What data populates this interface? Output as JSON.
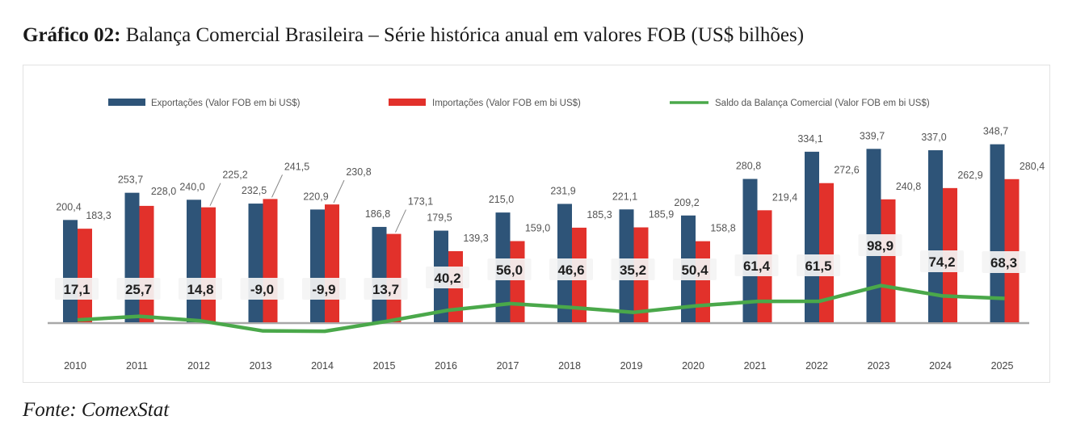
{
  "title": {
    "bold": "Gráfico 02:",
    "text": "Balança Comercial Brasileira – Série histórica anual em valores FOB (US$ bilhões)"
  },
  "source": "Fonte: ComexStat",
  "colors": {
    "exports": "#2e5478",
    "imports": "#e2312b",
    "balance": "#4aa84a"
  },
  "chart_data": {
    "type": "bar",
    "title": "Balança Comercial Brasileira – Série histórica anual em valores FOB (US$ bilhões)",
    "xlabel": "",
    "ylabel": "",
    "legend_position": "top",
    "grid": false,
    "ylim": [
      -15,
      360
    ],
    "categories": [
      "2010",
      "2011",
      "2012",
      "2013",
      "2014",
      "2015",
      "2016",
      "2017",
      "2018",
      "2019",
      "2020",
      "2021",
      "2022",
      "2023",
      "2024",
      "2025"
    ],
    "series": [
      {
        "name": "Exportações (Valor FOB em bi US$)",
        "kind": "bar",
        "values": [
          200.4,
          253.7,
          240.0,
          232.5,
          220.9,
          186.8,
          179.5,
          215.0,
          231.9,
          221.1,
          209.2,
          280.8,
          334.1,
          339.7,
          337.0,
          348.7
        ],
        "labels": [
          "200,4",
          "253,7",
          "240,0",
          "232,5",
          "220,9",
          "186,8",
          "179,5",
          "215,0",
          "231,9",
          "221,1",
          "209,2",
          "280,8",
          "334,1",
          "339,7",
          "337,0",
          "348,7"
        ]
      },
      {
        "name": "Importações (Valor FOB em bi US$)",
        "kind": "bar",
        "values": [
          183.3,
          228.0,
          225.2,
          241.5,
          230.8,
          173.1,
          139.3,
          159.0,
          185.3,
          185.9,
          158.8,
          219.4,
          272.6,
          240.8,
          262.9,
          280.4
        ],
        "labels": [
          "183,3",
          "228,0",
          "225,2",
          "241,5",
          "230,8",
          "173,1",
          "139,3",
          "159,0",
          "185,3",
          "185,9",
          "158,8",
          "219,4",
          "272,6",
          "240,8",
          "262,9",
          "280,4"
        ]
      },
      {
        "name": "Saldo da Balança Comercial (Valor FOB em bi US$)",
        "kind": "line",
        "values": [
          17.1,
          25.7,
          14.8,
          -9.0,
          -9.9,
          13.7,
          40.2,
          56.0,
          46.6,
          35.2,
          50.4,
          61.4,
          61.5,
          98.9,
          74.2,
          68.3
        ],
        "labels": [
          "17,1",
          "25,7",
          "14,8",
          "-9,0",
          "-9,9",
          "13,7",
          "40,2",
          "56,0",
          "46,6",
          "35,2",
          "50,4",
          "61,4",
          "61,5",
          "98,9",
          "74,2",
          "68,3"
        ]
      }
    ]
  }
}
